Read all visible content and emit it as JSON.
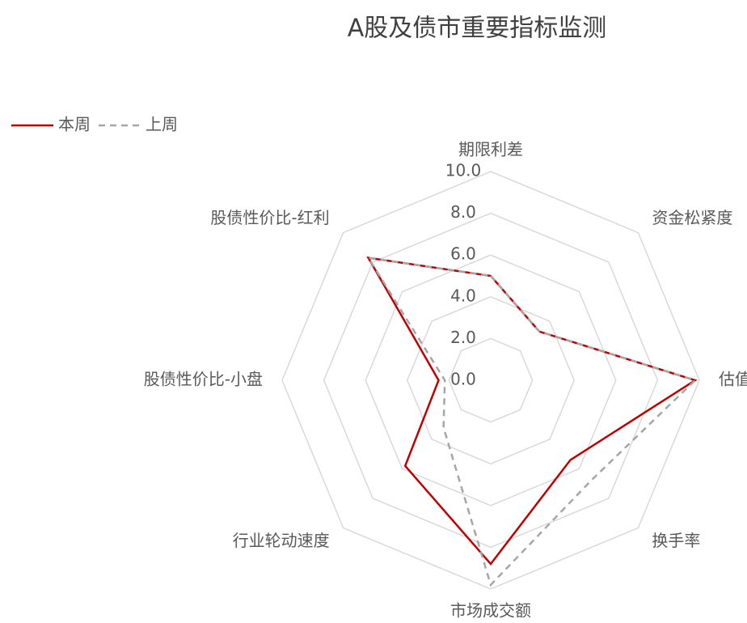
{
  "chart_data": {
    "type": "radar",
    "title": "A股及债市重要指标监测",
    "categories": [
      "期限利差",
      "资金松紧度",
      "估值",
      "换手率",
      "市场成交额",
      "行业轮动速度",
      "股债性价比-小盘",
      "股债性价比-红利"
    ],
    "series": [
      {
        "name": "本周",
        "color": "#c00000",
        "dash": false,
        "values": [
          5.0,
          3.3,
          9.8,
          5.4,
          8.8,
          5.8,
          2.5,
          8.3
        ]
      },
      {
        "name": "上周",
        "color": "#a6a6a6",
        "dash": true,
        "values": [
          5.0,
          3.3,
          9.8,
          6.8,
          9.8,
          3.2,
          2.2,
          8.3
        ]
      }
    ],
    "rlim": [
      0,
      10
    ],
    "rticks": [
      {
        "value": 0,
        "label": "0.0"
      },
      {
        "value": 2,
        "label": "2.0"
      },
      {
        "value": 4,
        "label": "4.0"
      },
      {
        "value": 6,
        "label": "6.0"
      },
      {
        "value": 8,
        "label": "8.0"
      },
      {
        "value": 10,
        "label": "10.0"
      }
    ],
    "grid": true,
    "legend": "top-left"
  }
}
